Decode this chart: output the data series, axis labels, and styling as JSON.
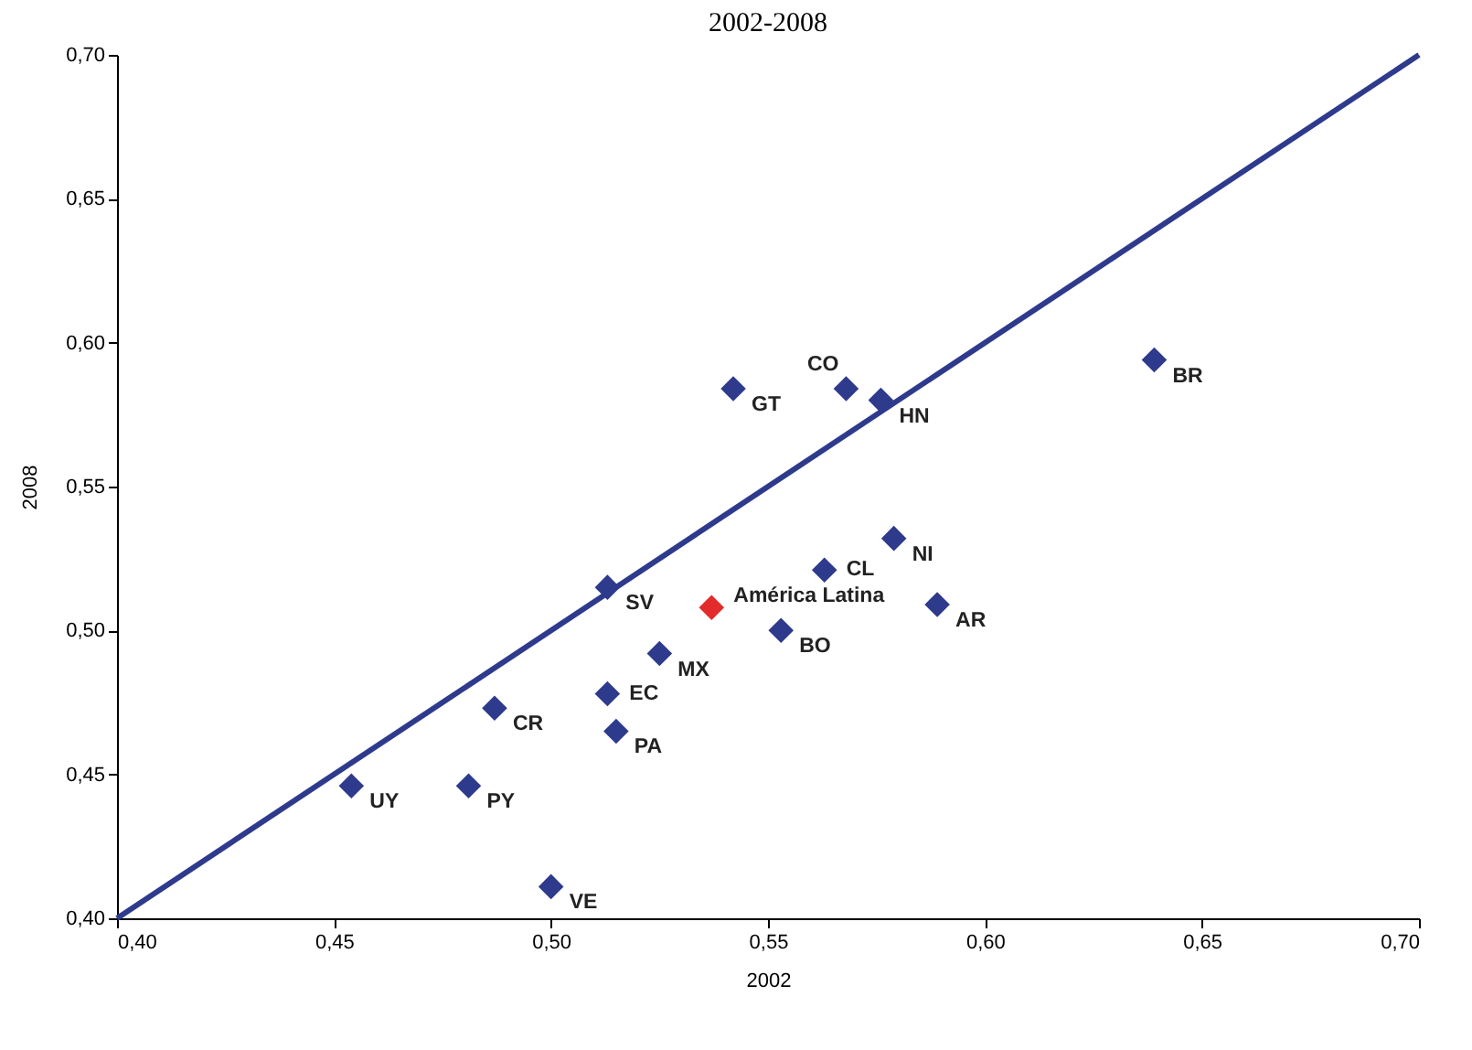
{
  "chart_data": {
    "type": "scatter",
    "title": "2002-2008",
    "xlabel": "2002",
    "ylabel": "2008",
    "xlim": [
      0.4,
      0.7
    ],
    "ylim": [
      0.4,
      0.7
    ],
    "xticks": [
      {
        "value": 0.4,
        "label": "0,40"
      },
      {
        "value": 0.45,
        "label": "0,45"
      },
      {
        "value": 0.5,
        "label": "0,50"
      },
      {
        "value": 0.55,
        "label": "0,55"
      },
      {
        "value": 0.6,
        "label": "0,60"
      },
      {
        "value": 0.65,
        "label": "0,65"
      },
      {
        "value": 0.7,
        "label": "0,70"
      }
    ],
    "yticks": [
      {
        "value": 0.4,
        "label": "0,40"
      },
      {
        "value": 0.45,
        "label": "0,45"
      },
      {
        "value": 0.5,
        "label": "0,50"
      },
      {
        "value": 0.55,
        "label": "0,55"
      },
      {
        "value": 0.6,
        "label": "0,60"
      },
      {
        "value": 0.65,
        "label": "0,65"
      },
      {
        "value": 0.7,
        "label": "0,70"
      }
    ],
    "grid": false,
    "marker": "diamond",
    "series": [
      {
        "type": "line",
        "color": "#2e3a8c",
        "x": [
          0.4,
          0.7
        ],
        "values": [
          0.4,
          0.7
        ],
        "marker": "none"
      },
      {
        "x": [
          0.454,
          0.481,
          0.5,
          0.487,
          0.513,
          0.515,
          0.525,
          0.513,
          0.537,
          0.553,
          0.563,
          0.579,
          0.589,
          0.542,
          0.568,
          0.576,
          0.639
        ],
        "values": [
          0.446,
          0.446,
          0.411,
          0.473,
          0.478,
          0.465,
          0.492,
          0.515,
          0.508,
          0.5,
          0.521,
          0.532,
          0.509,
          0.584,
          0.584,
          0.58,
          0.594
        ],
        "colors": [
          "#2e3a8c",
          "#2e3a8c",
          "#2e3a8c",
          "#2e3a8c",
          "#2e3a8c",
          "#2e3a8c",
          "#2e3a8c",
          "#2e3a8c",
          "#e32b2b",
          "#2e3a8c",
          "#2e3a8c",
          "#2e3a8c",
          "#2e3a8c",
          "#2e3a8c",
          "#2e3a8c",
          "#2e3a8c",
          "#2e3a8c"
        ]
      }
    ],
    "annotations": [
      {
        "text": "UY",
        "x": 0.454,
        "y": 0.446
      },
      {
        "text": "PY",
        "x": 0.481,
        "y": 0.446
      },
      {
        "text": "VE",
        "x": 0.5,
        "y": 0.411
      },
      {
        "text": "CR",
        "x": 0.487,
        "y": 0.473
      },
      {
        "text": "EC",
        "x": 0.513,
        "y": 0.478
      },
      {
        "text": "PA",
        "x": 0.515,
        "y": 0.465
      },
      {
        "text": "MX",
        "x": 0.525,
        "y": 0.492
      },
      {
        "text": "SV",
        "x": 0.513,
        "y": 0.515
      },
      {
        "text": "América Latina",
        "x": 0.537,
        "y": 0.508
      },
      {
        "text": "BO",
        "x": 0.553,
        "y": 0.5
      },
      {
        "text": "CL",
        "x": 0.563,
        "y": 0.521
      },
      {
        "text": "NI",
        "x": 0.579,
        "y": 0.532
      },
      {
        "text": "AR",
        "x": 0.589,
        "y": 0.509
      },
      {
        "text": "GT",
        "x": 0.542,
        "y": 0.584
      },
      {
        "text": "CO",
        "x": 0.568,
        "y": 0.584
      },
      {
        "text": "HN",
        "x": 0.576,
        "y": 0.58
      },
      {
        "text": "BR",
        "x": 0.639,
        "y": 0.594
      }
    ]
  }
}
